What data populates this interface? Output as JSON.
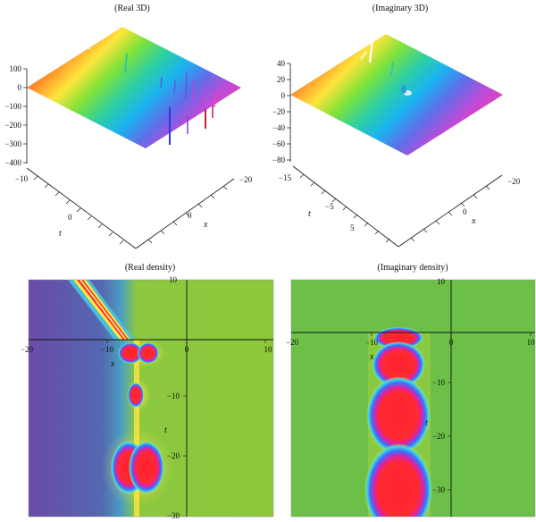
{
  "chart_data": [
    {
      "type": "surface",
      "title": "(Real 3D)",
      "xlabel": "x",
      "ylabel": "t",
      "z_ticks": [
        "100",
        "0",
        "−100",
        "−200",
        "−300",
        "−400"
      ],
      "t_ticks": [
        "−10",
        "0"
      ],
      "x_ticks": [
        "−20",
        "0"
      ],
      "zlim": [
        -400,
        100
      ]
    },
    {
      "type": "surface",
      "title": "(Imaginary 3D)",
      "xlabel": "x",
      "ylabel": "t",
      "z_ticks": [
        "40",
        "20",
        "0",
        "−20",
        "−40",
        "−60",
        "−80"
      ],
      "t_ticks": [
        "−15",
        "−5",
        "5"
      ],
      "x_ticks": [
        "−20",
        "0"
      ],
      "zlim": [
        -80,
        40
      ]
    },
    {
      "type": "heatmap",
      "title": "(Real density)",
      "xlabel": "x",
      "ylabel": "t",
      "x_ticks": [
        "−20",
        "−10",
        "0",
        "10"
      ],
      "y_ticks": [
        "10",
        "−10",
        "−20",
        "−30"
      ],
      "xlim": [
        -20,
        10
      ],
      "ylim": [
        -30,
        10
      ]
    },
    {
      "type": "heatmap",
      "title": "(Imaginary density)",
      "xlabel": "x",
      "ylabel": "t",
      "x_ticks": [
        "−20",
        "−10",
        "0",
        "10"
      ],
      "y_ticks": [
        "10",
        "−10",
        "−20",
        "−30"
      ],
      "xlim": [
        -20,
        10
      ],
      "ylim": [
        -40,
        10
      ]
    }
  ]
}
